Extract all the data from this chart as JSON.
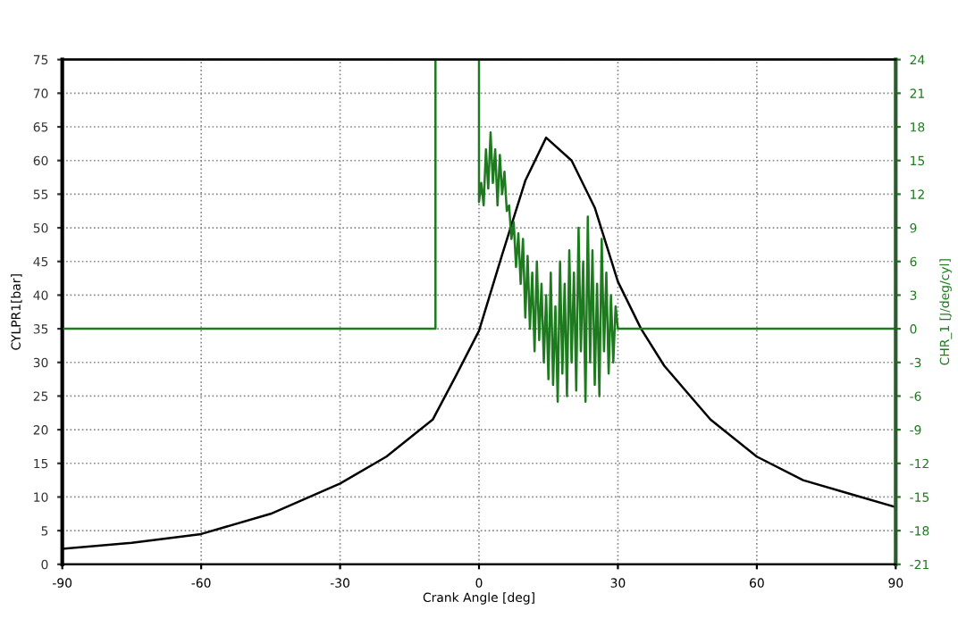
{
  "chart_data": {
    "type": "line",
    "xlabel": "Crank Angle [deg]",
    "ylabel": "CYLPR1[bar]",
    "y2label": "CHR_1 [J/deg/cyl]",
    "xlim": [
      -90,
      90
    ],
    "xticks": [
      -90,
      -60,
      -30,
      0,
      30,
      60,
      90
    ],
    "ylim": [
      0,
      75
    ],
    "yticks": [
      0,
      5,
      10,
      15,
      20,
      25,
      30,
      35,
      40,
      45,
      50,
      55,
      60,
      65,
      70,
      75
    ],
    "y2lim": [
      -21,
      24
    ],
    "y2ticks": [
      -21,
      -18,
      -15,
      -12,
      -9,
      -6,
      -3,
      0,
      3,
      6,
      9,
      12,
      15,
      18,
      21,
      24
    ],
    "grid": true,
    "line_style": "solid",
    "marker": "none",
    "series": [
      {
        "color": "#000000",
        "x": [
          -90,
          -75,
          -60,
          -45,
          -30,
          -20,
          -10,
          -5,
          0,
          5,
          10,
          14.5,
          20,
          25,
          30,
          35,
          40,
          50,
          60,
          70,
          80,
          90
        ],
        "values": [
          2.3,
          3.2,
          4.5,
          7.5,
          12,
          16,
          21.5,
          28,
          34.7,
          46,
          57,
          63.4,
          60,
          53,
          42,
          35,
          29.5,
          21.5,
          16,
          12.5,
          10.5,
          8.5
        ]
      },
      {
        "color": "#1e7a1e",
        "axis": "y2",
        "x": [
          -90,
          -9.4,
          -9.4,
          0,
          0,
          0.5,
          1,
          1.5,
          2,
          2.5,
          3,
          3.5,
          4,
          4.5,
          5,
          5.5,
          6,
          6.5,
          7,
          7.5,
          8,
          8.5,
          9,
          9.5,
          10,
          10.5,
          11,
          11.5,
          12,
          12.5,
          13,
          13.5,
          14,
          14.5,
          15,
          15.5,
          16,
          16.5,
          17,
          17.5,
          18,
          18.5,
          19,
          19.5,
          20,
          20.5,
          21,
          21.5,
          22,
          22.5,
          23,
          23.5,
          24,
          24.5,
          25,
          25.5,
          26,
          26.5,
          27,
          27.5,
          28,
          28.5,
          29,
          29.5,
          30,
          30,
          90
        ],
        "values": [
          0,
          0,
          24,
          24,
          11.3,
          13,
          11,
          16,
          12.5,
          17.5,
          13,
          16,
          11,
          15.5,
          12,
          14,
          10.5,
          11,
          8,
          9.5,
          5.5,
          8.5,
          4,
          8,
          1,
          6.5,
          0,
          5,
          -2,
          6,
          -1,
          4,
          -3,
          3,
          -4.5,
          5,
          -5,
          2,
          -6.5,
          6,
          -4,
          4,
          -6,
          7,
          -3,
          5,
          -5.5,
          9,
          -2,
          6,
          -6.5,
          10,
          -3,
          7,
          -5,
          4,
          -6,
          8,
          -2,
          5,
          -4,
          3,
          -3,
          2,
          0,
          0,
          0
        ]
      }
    ]
  }
}
